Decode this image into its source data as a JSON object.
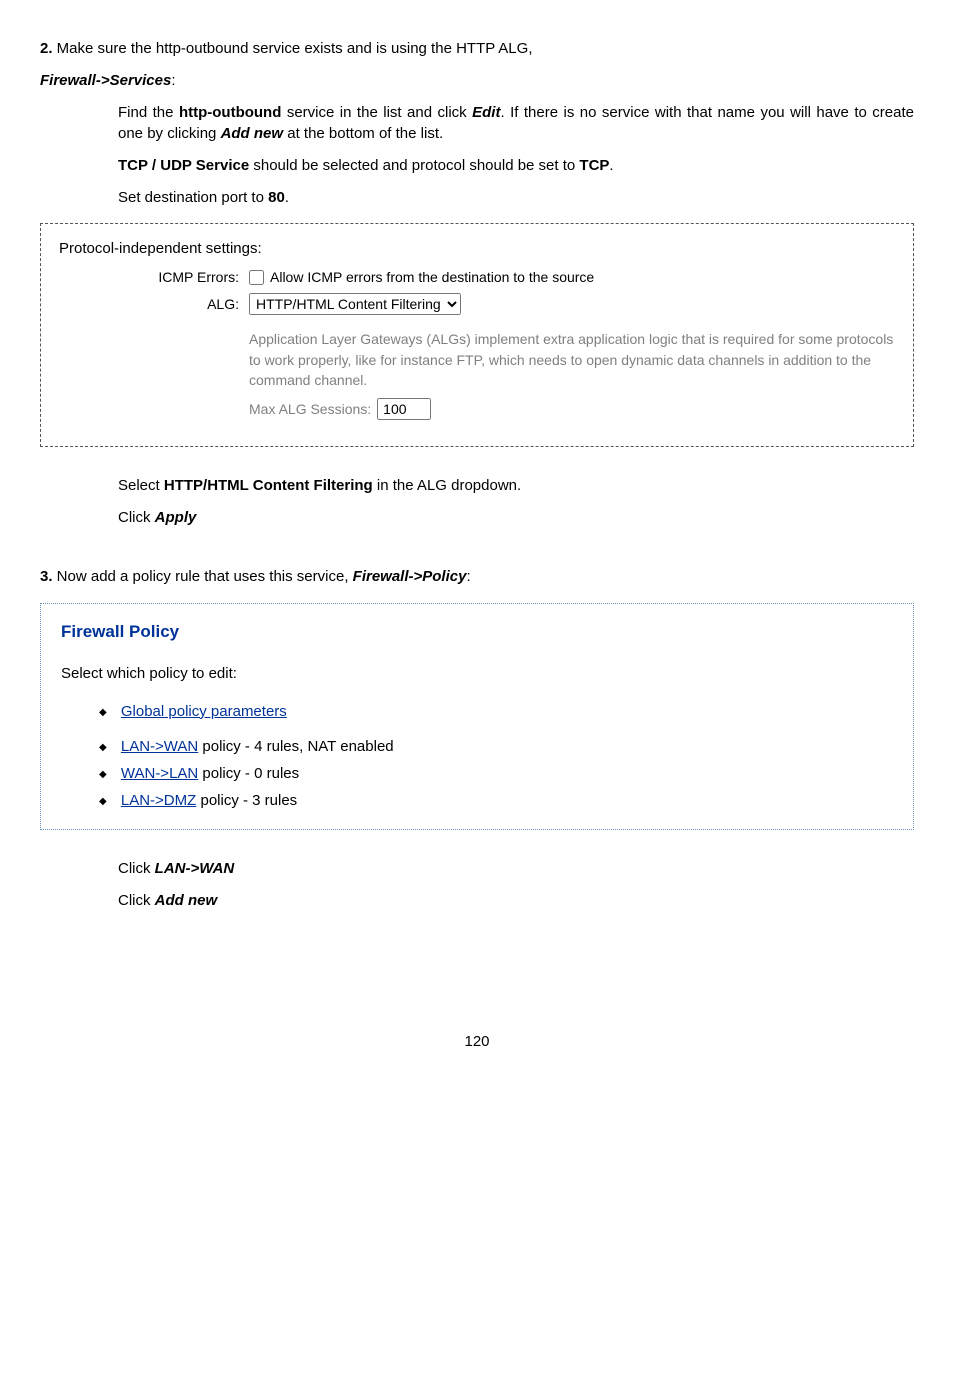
{
  "step2_intro": {
    "num": "2.",
    "text": " Make sure the http-outbound service exists and is using the HTTP ALG,"
  },
  "fw_services": "Firewall->Services",
  "para_find": {
    "a": "Find the ",
    "b": "http-outbound",
    "c": " service in the list and click ",
    "d": "Edit",
    "e": ". If there is no service with that name you will have to create one by clicking ",
    "f": "Add new",
    "g": " at the bottom of the list."
  },
  "para_tcp": {
    "a": "TCP / UDP Service",
    "b": " should be selected and protocol should be set to ",
    "c": "TCP",
    "d": "."
  },
  "para_port": {
    "a": "Set destination port to ",
    "b": "80",
    "c": "."
  },
  "prot_box": {
    "title": "Protocol-independent settings:",
    "icmp_label": "ICMP Errors:",
    "icmp_text": "Allow ICMP errors from the destination to the source",
    "alg_label": "ALG:",
    "alg_select": "HTTP/HTML Content Filtering",
    "alg_desc": "Application Layer Gateways (ALGs) implement extra application logic that is required for some protocols to work properly, like for instance FTP, which needs to open dynamic data channels in addition to the command channel.",
    "max_label": "Max ALG Sessions:",
    "max_value": "100"
  },
  "post_box": {
    "a": "Select ",
    "b": "HTTP/HTML Content Filtering",
    "c": " in the ALG dropdown.",
    "apply_a": "Click ",
    "apply_b": "Apply"
  },
  "step3": {
    "num": "3.",
    "text": " Now add a policy rule that uses this service, ",
    "link": "Firewall->Policy",
    "colon": ":"
  },
  "fp_box": {
    "title": "Firewall Policy",
    "subtitle": "Select which policy to edit:",
    "items": [
      {
        "link": "Global policy parameters",
        "suffix": ""
      },
      {
        "link": "LAN->WAN",
        "suffix": " policy - 4 rules, NAT enabled"
      },
      {
        "link": "WAN->LAN",
        "suffix": " policy - 0 rules"
      },
      {
        "link": "LAN->DMZ",
        "suffix": " policy - 3 rules"
      }
    ]
  },
  "bottom": {
    "a1": "Click ",
    "a2": "LAN->WAN",
    "b1": "Click ",
    "b2": "Add new"
  },
  "page_num": "120"
}
